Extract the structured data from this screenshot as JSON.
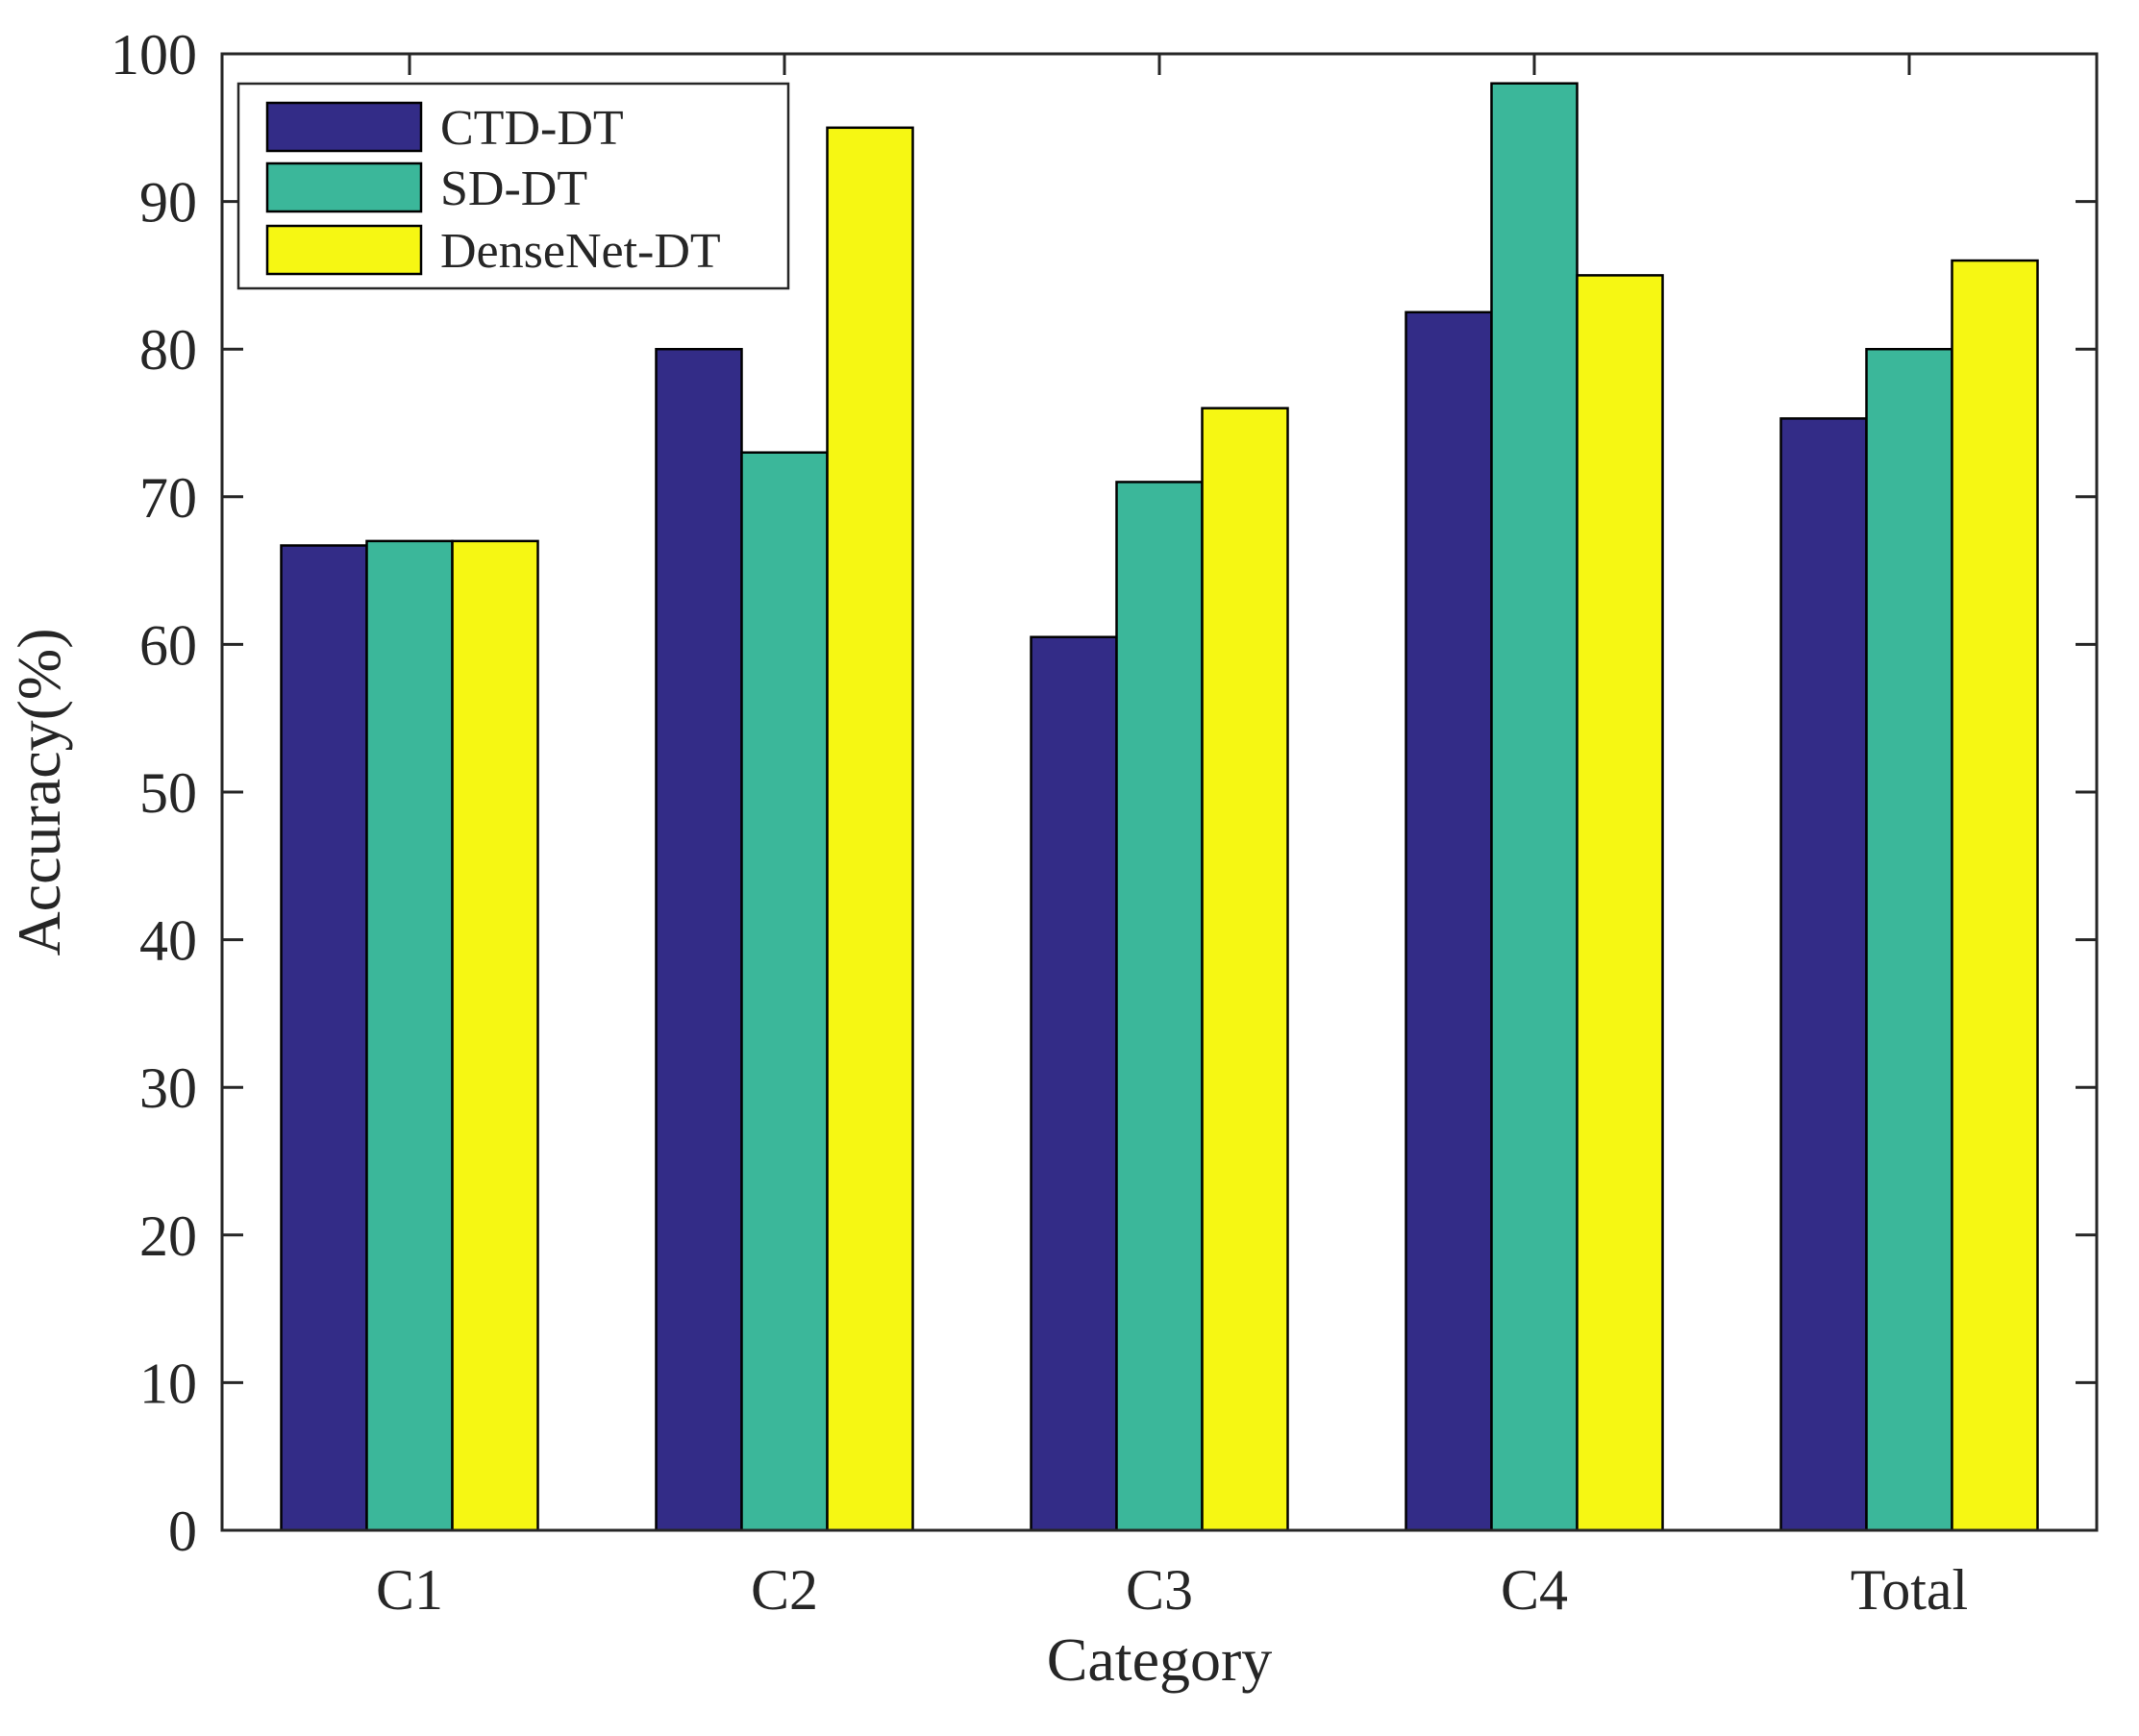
{
  "figure": {
    "background": "#FFFFFF"
  },
  "chart_data": {
    "type": "bar",
    "title": "",
    "xlabel": "Category",
    "ylabel": "Accuracy(%)",
    "categories": [
      "C1",
      "C2",
      "C3",
      "C4",
      "Total"
    ],
    "series": [
      {
        "name": "CTD-DT",
        "color": "#332C87",
        "values": [
          66.7,
          80,
          60.5,
          82.5,
          75.3
        ]
      },
      {
        "name": "SD-DT",
        "color": "#3BB79A",
        "values": [
          67,
          73,
          71,
          98,
          80
        ]
      },
      {
        "name": "DenseNet-DT",
        "color": "#F6F713",
        "values": [
          67,
          95,
          76,
          85,
          86
        ]
      }
    ],
    "ylim": [
      0,
      100
    ],
    "yticks": [
      0,
      10,
      20,
      30,
      40,
      50,
      60,
      70,
      80,
      90,
      100
    ],
    "grid": false,
    "legend_position": "top-left",
    "bar_edge_color": "#000000",
    "axis_color": "#262626"
  }
}
